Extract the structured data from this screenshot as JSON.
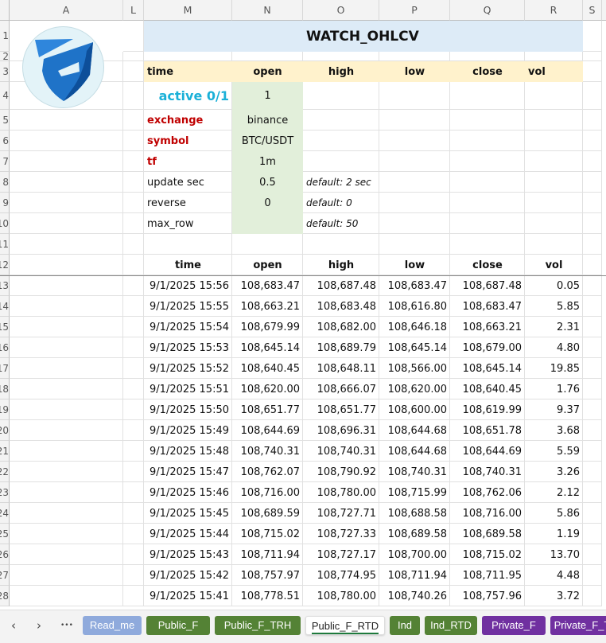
{
  "columns": [
    "A",
    "L",
    "M",
    "N",
    "O",
    "P",
    "Q",
    "R",
    "S"
  ],
  "title": "WATCH_OHLCV",
  "header_row": [
    "time",
    "open",
    "high",
    "low",
    "close",
    "vol"
  ],
  "params": [
    {
      "label": "active 0/1",
      "value": "1",
      "note": "",
      "style": "active"
    },
    {
      "label": "exchange",
      "value": "binance",
      "note": "",
      "style": "red"
    },
    {
      "label": "symbol",
      "value": "BTC/USDT",
      "note": "",
      "style": "red"
    },
    {
      "label": "tf",
      "value": "1m",
      "note": "",
      "style": "red"
    },
    {
      "label": "update sec",
      "value": "0.5",
      "note": "default:  2 sec",
      "style": "plain"
    },
    {
      "label": "reverse",
      "value": "0",
      "note": "default: 0",
      "style": "plain"
    },
    {
      "label": "max_row",
      "value": "",
      "note": "default: 50",
      "style": "plain"
    }
  ],
  "table_header": [
    "time",
    "open",
    "high",
    "low",
    "close",
    "vol"
  ],
  "rows": [
    [
      "9/1/2025 15:56",
      "108,683.47",
      "108,687.48",
      "108,683.47",
      "108,687.48",
      "0.05"
    ],
    [
      "9/1/2025 15:55",
      "108,663.21",
      "108,683.48",
      "108,616.80",
      "108,683.47",
      "5.85"
    ],
    [
      "9/1/2025 15:54",
      "108,679.99",
      "108,682.00",
      "108,646.18",
      "108,663.21",
      "2.31"
    ],
    [
      "9/1/2025 15:53",
      "108,645.14",
      "108,689.79",
      "108,645.14",
      "108,679.00",
      "4.80"
    ],
    [
      "9/1/2025 15:52",
      "108,640.45",
      "108,648.11",
      "108,566.00",
      "108,645.14",
      "19.85"
    ],
    [
      "9/1/2025 15:51",
      "108,620.00",
      "108,666.07",
      "108,620.00",
      "108,640.45",
      "1.76"
    ],
    [
      "9/1/2025 15:50",
      "108,651.77",
      "108,651.77",
      "108,600.00",
      "108,619.99",
      "9.37"
    ],
    [
      "9/1/2025 15:49",
      "108,644.69",
      "108,696.31",
      "108,644.68",
      "108,651.78",
      "3.68"
    ],
    [
      "9/1/2025 15:48",
      "108,740.31",
      "108,740.31",
      "108,644.68",
      "108,644.69",
      "5.59"
    ],
    [
      "9/1/2025 15:47",
      "108,762.07",
      "108,790.92",
      "108,740.31",
      "108,740.31",
      "3.26"
    ],
    [
      "9/1/2025 15:46",
      "108,716.00",
      "108,780.00",
      "108,715.99",
      "108,762.06",
      "2.12"
    ],
    [
      "9/1/2025 15:45",
      "108,689.59",
      "108,727.71",
      "108,688.58",
      "108,716.00",
      "5.86"
    ],
    [
      "9/1/2025 15:44",
      "108,715.02",
      "108,727.33",
      "108,689.58",
      "108,689.58",
      "1.19"
    ],
    [
      "9/1/2025 15:43",
      "108,711.94",
      "108,727.17",
      "108,700.00",
      "108,715.02",
      "13.70"
    ],
    [
      "9/1/2025 15:42",
      "108,757.97",
      "108,774.95",
      "108,711.94",
      "108,711.95",
      "4.48"
    ],
    [
      "9/1/2025 15:41",
      "108,778.51",
      "108,780.00",
      "108,740.26",
      "108,757.96",
      "3.72"
    ]
  ],
  "tabs": [
    {
      "label": "Read_me",
      "color": "#8faadc"
    },
    {
      "label": "Public_F",
      "color": "#548235"
    },
    {
      "label": "Public_F_TRH",
      "color": "#548235"
    },
    {
      "label": "Public_F_RTD",
      "color": "#ffffff",
      "active": true
    },
    {
      "label": "Ind",
      "color": "#548235"
    },
    {
      "label": "Ind_RTD",
      "color": "#548235"
    },
    {
      "label": "Private_F",
      "color": "#7030a0"
    },
    {
      "label": "Private_F_T",
      "color": "#7030a0"
    }
  ],
  "nav": {
    "prev": "‹",
    "next": "›",
    "more": "•••"
  },
  "colors": {
    "title_band": "#ddebf7",
    "header_band": "#fff2cc",
    "param_value": "#e2efda",
    "active_label": "#1ab0d8",
    "red_label": "#c00000"
  }
}
